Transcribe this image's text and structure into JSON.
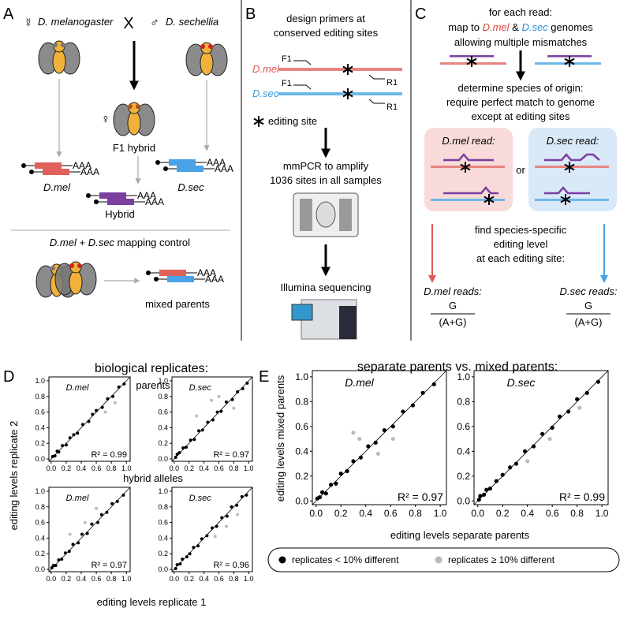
{
  "panels": {
    "a": {
      "label": "A",
      "female_symbol": "☿",
      "species1": "D. melanogaster",
      "cross": "X",
      "male_symbol": "♂",
      "species2": "D. sechellia",
      "f1_symbol": "♀",
      "f1": "F1 hybrid",
      "poly_a": "AAA",
      "mel": "D.mel",
      "sec": "D.sec",
      "hybrid": "Hybrid",
      "control": [
        "D.mel",
        " + ",
        "D.sec",
        " mapping control"
      ],
      "mixed": "mixed parents"
    },
    "b": {
      "label": "B",
      "line1": "design primers at",
      "line2": "conserved editing sites",
      "mel": "D.mel",
      "sec": "D.sec",
      "f1": "F1",
      "r1": "R1",
      "site": "editing site",
      "pcr1": "mmPCR to amplify",
      "pcr2": "1036 sites in all samples",
      "seq": "Illumina sequencing"
    },
    "c": {
      "label": "C",
      "line1": "for each read:",
      "map_line": [
        "map to ",
        "D.mel",
        " & ",
        "D.sec",
        " genomes"
      ],
      "line3": "allowing multiple mismatches",
      "det1": "determine species of origin:",
      "det2": "require perfect match to genome",
      "det3": "except at editing sites",
      "mel_read": "D.mel read:",
      "or": "or",
      "sec_read": "D.sec read:",
      "find1": "find species-specific",
      "find2": "editing level",
      "find3": "at each editing site:",
      "mel_reads": "D.mel reads:",
      "sec_reads": "D.sec reads:",
      "num": "G",
      "den": "(A+G)"
    },
    "d": {
      "label": "D",
      "title": "biological replicates:",
      "parents": "parents",
      "hybrid": "hybrid alleles",
      "y_label": "editing levels replicate 2",
      "x_label": "editing levels replicate 1"
    },
    "e": {
      "label": "E",
      "title": "separate parents vs. mixed parents:",
      "y_label": "editing levels mixed parents",
      "x_label": "editing levels separate parents"
    }
  },
  "legend": [
    {
      "name": "replicates < 10% different",
      "color": "#000000"
    },
    {
      "name": "replicates ≥ 10% different",
      "color": "#bbbbbb"
    }
  ],
  "chart_data": [
    {
      "type": "scatter",
      "title": "D.mel",
      "annotation": "R² = 0.99",
      "xlim": [
        -0.03,
        1.05
      ],
      "ylim": [
        -0.03,
        1.05
      ],
      "xticks": [
        {
          "value": 0,
          "label": "0.0"
        },
        {
          "value": 0.2,
          "label": "0.2"
        },
        {
          "value": 0.4,
          "label": "0.4"
        },
        {
          "value": 0.6,
          "label": "0.6"
        },
        {
          "value": 0.8,
          "label": "0.8"
        },
        {
          "value": 1,
          "label": "1.0"
        }
      ],
      "yticks": [
        {
          "value": 0,
          "label": "0.0"
        },
        {
          "value": 0.2,
          "label": "0.2"
        },
        {
          "value": 0.4,
          "label": "0.4"
        },
        {
          "value": 0.6,
          "label": "0.6"
        },
        {
          "value": 0.8,
          "label": "0.8"
        },
        {
          "value": 1,
          "label": "1.0"
        }
      ],
      "series": [
        {
          "color": "#000000",
          "x": [
            0.02,
            0.05,
            0.08,
            0.1,
            0.15,
            0.2,
            0.25,
            0.3,
            0.35,
            0.42,
            0.5,
            0.55,
            0.6,
            0.68,
            0.75,
            0.82,
            0.9,
            0.97
          ],
          "values": [
            0.03,
            0.04,
            0.1,
            0.09,
            0.17,
            0.18,
            0.27,
            0.31,
            0.33,
            0.44,
            0.48,
            0.57,
            0.62,
            0.66,
            0.77,
            0.8,
            0.92,
            0.96
          ]
        },
        {
          "color": "#bbbbbb",
          "x": [
            0.85,
            0.72
          ],
          "values": [
            0.72,
            0.6
          ]
        }
      ]
    },
    {
      "type": "scatter",
      "title": "D.sec",
      "annotation": "R² = 0.97",
      "xlim": [
        -0.03,
        1.05
      ],
      "ylim": [
        -0.03,
        1.05
      ],
      "xticks": [
        {
          "value": 0,
          "label": "0.0"
        },
        {
          "value": 0.2,
          "label": "0.2"
        },
        {
          "value": 0.4,
          "label": "0.4"
        },
        {
          "value": 0.6,
          "label": "0.6"
        },
        {
          "value": 0.8,
          "label": "0.8"
        },
        {
          "value": 1,
          "label": "1.0"
        }
      ],
      "yticks": [
        {
          "value": 0,
          "label": "0.0"
        },
        {
          "value": 0.2,
          "label": "0.2"
        },
        {
          "value": 0.4,
          "label": "0.4"
        },
        {
          "value": 0.6,
          "label": "0.6"
        },
        {
          "value": 0.8,
          "label": "0.8"
        },
        {
          "value": 1,
          "label": "1.0"
        }
      ],
      "series": [
        {
          "color": "#000000",
          "x": [
            0.02,
            0.04,
            0.07,
            0.12,
            0.16,
            0.22,
            0.27,
            0.33,
            0.38,
            0.45,
            0.52,
            0.58,
            0.63,
            0.7,
            0.78,
            0.85,
            0.92,
            0.98
          ],
          "values": [
            0.02,
            0.06,
            0.08,
            0.14,
            0.15,
            0.24,
            0.25,
            0.36,
            0.37,
            0.47,
            0.5,
            0.6,
            0.61,
            0.73,
            0.76,
            0.86,
            0.9,
            0.97
          ]
        },
        {
          "color": "#bbbbbb",
          "x": [
            0.3,
            0.5,
            0.6,
            0.8
          ],
          "values": [
            0.55,
            0.75,
            0.8,
            0.65
          ]
        }
      ]
    },
    {
      "type": "scatter",
      "title": "D.mel",
      "annotation": "R² = 0.97",
      "xlim": [
        -0.03,
        1.05
      ],
      "ylim": [
        -0.03,
        1.05
      ],
      "xticks": [
        {
          "value": 0,
          "label": "0.0"
        },
        {
          "value": 0.2,
          "label": "0.2"
        },
        {
          "value": 0.4,
          "label": "0.4"
        },
        {
          "value": 0.6,
          "label": "0.6"
        },
        {
          "value": 0.8,
          "label": "0.8"
        },
        {
          "value": 1,
          "label": "1.0"
        }
      ],
      "yticks": [
        {
          "value": 0,
          "label": "0.0"
        },
        {
          "value": 0.2,
          "label": "0.2"
        },
        {
          "value": 0.4,
          "label": "0.4"
        },
        {
          "value": 0.6,
          "label": "0.6"
        },
        {
          "value": 0.8,
          "label": "0.8"
        },
        {
          "value": 1,
          "label": "1.0"
        }
      ],
      "series": [
        {
          "color": "#000000",
          "x": [
            0.01,
            0.03,
            0.06,
            0.1,
            0.14,
            0.19,
            0.24,
            0.29,
            0.36,
            0.41,
            0.48,
            0.54,
            0.62,
            0.67,
            0.74,
            0.81,
            0.88,
            0.96
          ],
          "values": [
            0.02,
            0.05,
            0.05,
            0.12,
            0.13,
            0.21,
            0.23,
            0.32,
            0.34,
            0.45,
            0.46,
            0.58,
            0.6,
            0.7,
            0.73,
            0.84,
            0.87,
            0.95
          ]
        },
        {
          "color": "#bbbbbb",
          "x": [
            0.25,
            0.45,
            0.6
          ],
          "values": [
            0.45,
            0.6,
            0.78
          ]
        }
      ]
    },
    {
      "type": "scatter",
      "title": "D.sec",
      "annotation": "R² = 0.96",
      "xlim": [
        -0.03,
        1.05
      ],
      "ylim": [
        -0.03,
        1.05
      ],
      "xticks": [
        {
          "value": 0,
          "label": "0.0"
        },
        {
          "value": 0.2,
          "label": "0.2"
        },
        {
          "value": 0.4,
          "label": "0.4"
        },
        {
          "value": 0.6,
          "label": "0.6"
        },
        {
          "value": 0.8,
          "label": "0.8"
        },
        {
          "value": 1,
          "label": "1.0"
        }
      ],
      "yticks": [
        {
          "value": 0,
          "label": "0.0"
        },
        {
          "value": 0.2,
          "label": "0.2"
        },
        {
          "value": 0.4,
          "label": "0.4"
        },
        {
          "value": 0.6,
          "label": "0.6"
        },
        {
          "value": 0.8,
          "label": "0.8"
        },
        {
          "value": 1,
          "label": "1.0"
        }
      ],
      "series": [
        {
          "color": "#000000",
          "x": [
            0.02,
            0.04,
            0.08,
            0.11,
            0.17,
            0.21,
            0.26,
            0.32,
            0.37,
            0.44,
            0.51,
            0.57,
            0.64,
            0.71,
            0.77,
            0.84,
            0.91,
            0.97
          ],
          "values": [
            0.01,
            0.06,
            0.07,
            0.13,
            0.16,
            0.2,
            0.28,
            0.3,
            0.39,
            0.43,
            0.53,
            0.55,
            0.66,
            0.68,
            0.8,
            0.82,
            0.93,
            0.95
          ]
        },
        {
          "color": "#bbbbbb",
          "x": [
            0.7,
            0.85,
            0.55
          ],
          "values": [
            0.55,
            0.7,
            0.42
          ]
        }
      ]
    },
    {
      "type": "scatter",
      "title": "D.mel",
      "annotation": "R² = 0.97",
      "xlim": [
        -0.03,
        1.05
      ],
      "ylim": [
        -0.03,
        1.05
      ],
      "xticks": [
        {
          "value": 0,
          "label": "0.0"
        },
        {
          "value": 0.2,
          "label": "0.2"
        },
        {
          "value": 0.4,
          "label": "0.4"
        },
        {
          "value": 0.6,
          "label": "0.6"
        },
        {
          "value": 0.8,
          "label": "0.8"
        },
        {
          "value": 1,
          "label": "1.0"
        }
      ],
      "yticks": [
        {
          "value": 0,
          "label": "0.0"
        },
        {
          "value": 0.2,
          "label": "0.2"
        },
        {
          "value": 0.4,
          "label": "0.4"
        },
        {
          "value": 0.6,
          "label": "0.6"
        },
        {
          "value": 0.8,
          "label": "0.8"
        },
        {
          "value": 1,
          "label": "1.0"
        }
      ],
      "series": [
        {
          "color": "#000000",
          "x": [
            0.01,
            0.03,
            0.05,
            0.08,
            0.12,
            0.16,
            0.2,
            0.25,
            0.3,
            0.36,
            0.42,
            0.48,
            0.55,
            0.62,
            0.7,
            0.78,
            0.86,
            0.95
          ],
          "values": [
            0.02,
            0.03,
            0.07,
            0.06,
            0.13,
            0.14,
            0.22,
            0.24,
            0.32,
            0.35,
            0.44,
            0.47,
            0.57,
            0.6,
            0.72,
            0.77,
            0.87,
            0.94
          ]
        },
        {
          "color": "#bbbbbb",
          "x": [
            0.3,
            0.35,
            0.5,
            0.62
          ],
          "values": [
            0.55,
            0.5,
            0.38,
            0.5
          ]
        }
      ]
    },
    {
      "type": "scatter",
      "title": "D.sec",
      "annotation": "R² = 0.99",
      "xlim": [
        -0.03,
        1.05
      ],
      "ylim": [
        -0.03,
        1.05
      ],
      "xticks": [
        {
          "value": 0,
          "label": "0.0"
        },
        {
          "value": 0.2,
          "label": "0.2"
        },
        {
          "value": 0.4,
          "label": "0.4"
        },
        {
          "value": 0.6,
          "label": "0.6"
        },
        {
          "value": 0.8,
          "label": "0.8"
        },
        {
          "value": 1,
          "label": "1.0"
        }
      ],
      "yticks": [
        {
          "value": 0,
          "label": "0.0"
        },
        {
          "value": 0.2,
          "label": "0.2"
        },
        {
          "value": 0.4,
          "label": "0.4"
        },
        {
          "value": 0.6,
          "label": "0.6"
        },
        {
          "value": 0.8,
          "label": "0.8"
        },
        {
          "value": 1,
          "label": "1.0"
        }
      ],
      "series": [
        {
          "color": "#000000",
          "x": [
            0.01,
            0.02,
            0.05,
            0.07,
            0.1,
            0.15,
            0.2,
            0.26,
            0.31,
            0.38,
            0.45,
            0.52,
            0.6,
            0.66,
            0.73,
            0.8,
            0.88,
            0.97
          ],
          "values": [
            0.01,
            0.04,
            0.05,
            0.09,
            0.1,
            0.16,
            0.21,
            0.27,
            0.3,
            0.4,
            0.44,
            0.54,
            0.59,
            0.68,
            0.72,
            0.82,
            0.87,
            0.96
          ]
        },
        {
          "color": "#bbbbbb",
          "x": [
            0.4,
            0.58,
            0.82
          ],
          "values": [
            0.32,
            0.5,
            0.75
          ]
        }
      ]
    }
  ]
}
